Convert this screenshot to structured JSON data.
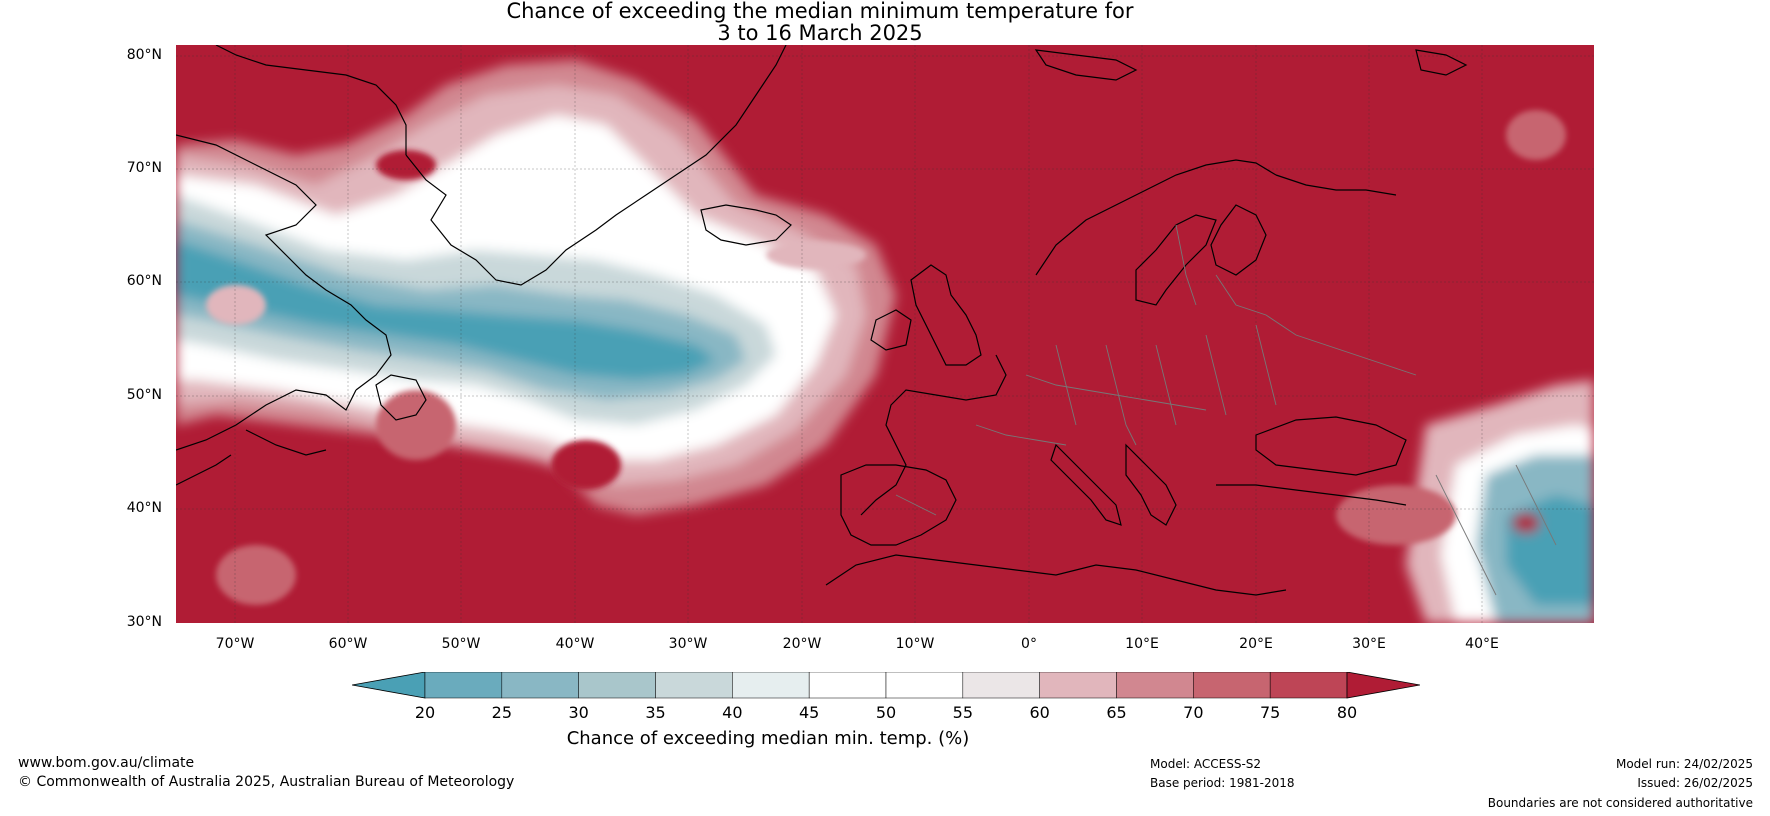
{
  "title": {
    "line1": "Chance of exceeding the median minimum temperature for",
    "line2": "3 to 16 March 2025"
  },
  "map": {
    "lat_labels": [
      "80°N",
      "70°N",
      "60°N",
      "50°N",
      "40°N",
      "30°N"
    ],
    "lon_labels": [
      "70°W",
      "60°W",
      "50°W",
      "40°W",
      "30°W",
      "20°W",
      "10°W",
      "0°",
      "10°E",
      "20°E",
      "30°E",
      "40°E"
    ],
    "colors": {
      "hot": "#b01c35",
      "cold": "#4aa0b5"
    }
  },
  "colorbar": {
    "label": "Chance of exceeding median min. temp. (%)",
    "ticks": [
      "20",
      "25",
      "30",
      "35",
      "40",
      "45",
      "50",
      "55",
      "60",
      "65",
      "70",
      "75",
      "80"
    ],
    "colors": [
      "#4aa0b5",
      "#6aabbd",
      "#89b7c4",
      "#a9c6cb",
      "#c9d8da",
      "#e6eeef",
      "#ffffff",
      "#ffffff",
      "#ebe6e7",
      "#e1b6bc",
      "#d18790",
      "#c76570",
      "#be4556",
      "#b01c35"
    ]
  },
  "footer": {
    "website": "www.bom.gov.au/climate",
    "copyright": "© Commonwealth of Australia 2025, Australian Bureau of Meteorology",
    "model": "Model: ACCESS-S2",
    "base_period": "Base period: 1981-2018",
    "model_run": "Model run: 24/02/2025",
    "issued": "Issued: 26/02/2025",
    "boundaries": "Boundaries are not considered authoritative"
  }
}
